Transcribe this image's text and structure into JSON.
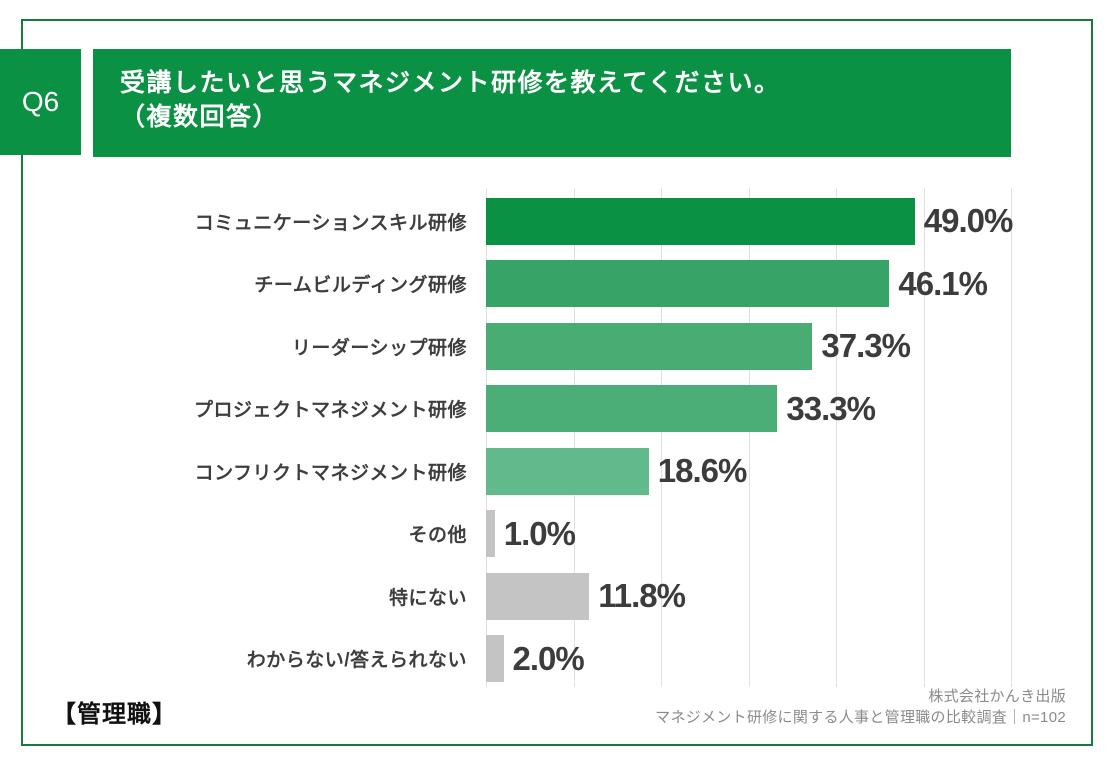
{
  "header": {
    "q_label": "Q6",
    "title_line1": "受講したいと思うマネジメント研修を教えてください。",
    "title_line2": "（複数回答）",
    "bg_color": "#0b9144",
    "text_color": "#ffffff"
  },
  "frame": {
    "border_color": "#157a3c"
  },
  "chart_data": {
    "type": "bar",
    "orientation": "horizontal",
    "title": "受講したいと思うマネジメント研修を教えてください。（複数回答）",
    "categories": [
      "コミュニケーションスキル研修",
      "チームビルディング研修",
      "リーダーシップ研修",
      "プロジェクトマネジメント研修",
      "コンフリクトマネジメント研修",
      "その他",
      "特にない",
      "わからない/答えられない"
    ],
    "values": [
      49.0,
      46.1,
      37.3,
      33.3,
      18.6,
      1.0,
      11.8,
      2.0
    ],
    "value_labels": [
      "49.0%",
      "46.1%",
      "37.3%",
      "33.3%",
      "18.6%",
      "1.0%",
      "11.8%",
      "2.0%"
    ],
    "bar_colors": [
      "#0b9144",
      "#35a466",
      "#48ac73",
      "#4cae77",
      "#60ba8b",
      "#c4c4c4",
      "#c4c4c4",
      "#c4c4c4"
    ],
    "xlim": [
      0,
      60
    ],
    "grid_step": 10,
    "grid": true,
    "gridline_color": "#e1e1e1",
    "legend": "none",
    "xlabel": "",
    "ylabel": ""
  },
  "footer": {
    "group_label": "【管理職】",
    "source_line1": "株式会社かんき出版",
    "source_line2": "マネジメント研修に関する人事と管理職の比較調査｜n=102"
  }
}
